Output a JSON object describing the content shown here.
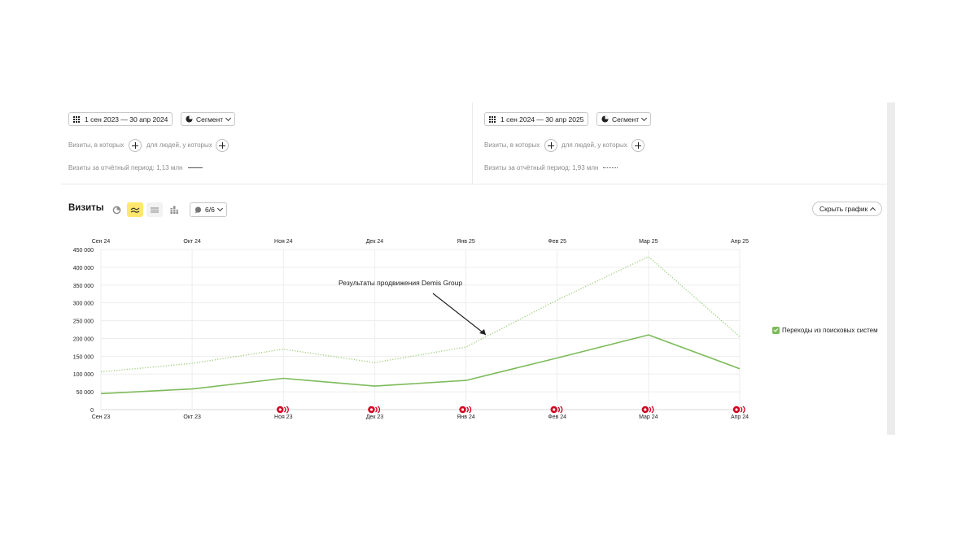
{
  "left_panel": {
    "date_range": "1 сен 2023 — 30 апр 2024",
    "segment_label": "Сегмент",
    "visits_where": "Визиты, в которых",
    "for_people": "для людей, у которых",
    "period_total": "Визиты за отчётный период: 1,13 млн"
  },
  "right_panel": {
    "date_range": "1 сен 2024 — 30 апр 2025",
    "segment_label": "Сегмент",
    "visits_where": "Визиты, в которых",
    "for_people": "для людей, у которых",
    "period_total": "Визиты за отчётный период: 1,93 млн"
  },
  "toolbar": {
    "title": "Визиты",
    "counter_label": "6/6",
    "hide_chart_label": "Скрыть график",
    "icons": [
      "pie-chart-icon",
      "line-chart-icon",
      "area-chart-icon",
      "bar-chart-icon",
      "comment-icon"
    ]
  },
  "colors": {
    "series": "#7dbb5a",
    "series_light": "#9fd17e",
    "active_tool_bg": "#ffe86b",
    "marker": "#d1001f",
    "grid": "#ededed"
  },
  "annotation": "Результаты продвижения  Demis Group",
  "legend_label": "Переходы из поисковых систем",
  "chart_data": {
    "type": "line",
    "x_top": [
      "Сен 24",
      "Окт 24",
      "Ноя 24",
      "Дек 24",
      "Янв 25",
      "Фев 25",
      "Мар 25",
      "Апр 25"
    ],
    "x_bottom": [
      "Сен 23",
      "Окт 23",
      "Ноя 23",
      "Дек 23",
      "Янв 24",
      "Фев 24",
      "Мар 24",
      "Апр 24"
    ],
    "y_ticks": [
      "0",
      "50 000",
      "100 000",
      "150 000",
      "200 000",
      "250 000",
      "300 000",
      "350 000",
      "400 000",
      "450 000"
    ],
    "ylim": [
      0,
      450000
    ],
    "grid": true,
    "legend_position": "right",
    "series": [
      {
        "period": "Сен 24 — Апр 25",
        "style": "dotted",
        "values": [
          106000,
          130000,
          170000,
          132000,
          176000,
          308000,
          430000,
          205000
        ]
      },
      {
        "period": "Сен 23 — Апр 24",
        "style": "solid",
        "values": [
          45000,
          58000,
          88000,
          66000,
          82000,
          145000,
          210000,
          115000
        ]
      }
    ],
    "event_markers": [
      2,
      3,
      4,
      5,
      6,
      7
    ]
  }
}
